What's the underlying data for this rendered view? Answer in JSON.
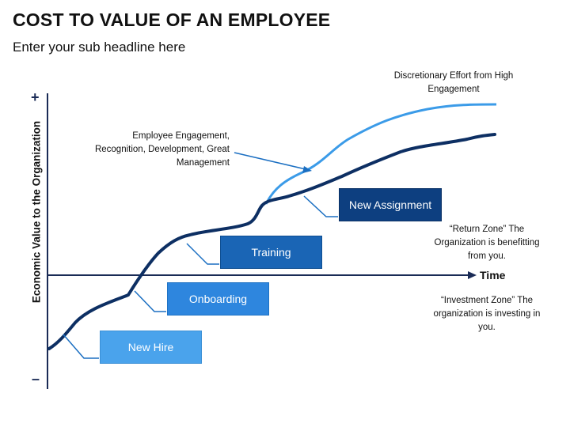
{
  "title": "COST TO VALUE OF AN EMPLOYEE",
  "subtitle": "Enter your sub headline here",
  "axes": {
    "y_label": "Economic Value to the Organization",
    "y_plus": "+",
    "y_minus": "–",
    "x_label": "Time"
  },
  "annotations": {
    "discretionary_effort": "Discretionary Effort from High Engagement",
    "engagement": "Employee Engagement, Recognition, Development, Great Management",
    "return_zone": "“Return Zone” The Organization is benefitting from you.",
    "investment_zone": "“Investment Zone” The organization is investing in you."
  },
  "stages": [
    {
      "label": "New Hire"
    },
    {
      "label": "Onboarding"
    },
    {
      "label": "Training"
    },
    {
      "label": "New Assignment"
    }
  ],
  "colors": {
    "main_curve": "#0d2f63",
    "engagement_curve": "#3b9be8",
    "axis": "#1a2b56",
    "leader_line": "#1b6fc2",
    "stage_new_hire": "#4aa3ec",
    "stage_onboarding": "#2e86de",
    "stage_training": "#1a65b5",
    "stage_new_assignment": "#0d3f80"
  }
}
